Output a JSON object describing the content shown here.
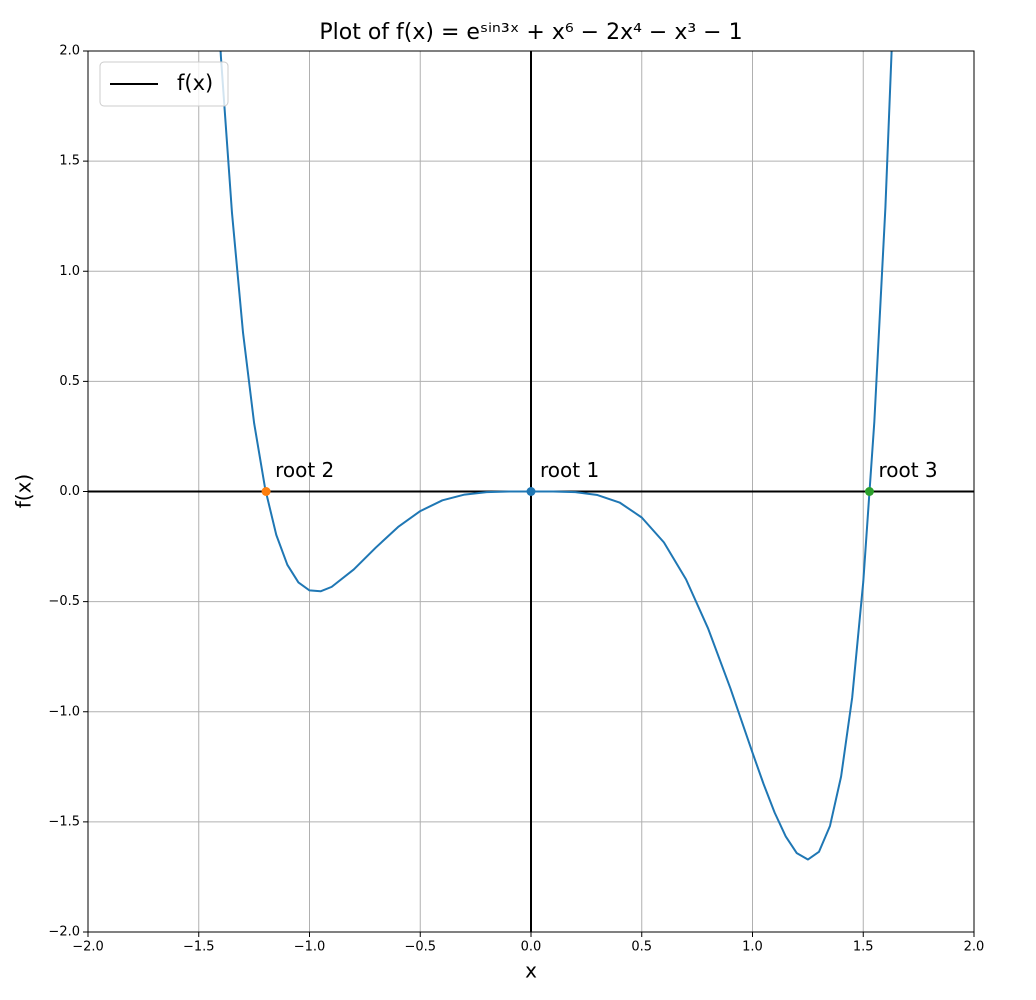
{
  "chart_data": {
    "type": "line",
    "title": "Plot of f(x) = eˢⁱⁿ³ˣ + x⁶ − 2x⁴ − x³ − 1",
    "x_label": "x",
    "y_label": "f(x)",
    "xlim": [
      -2.0,
      2.0
    ],
    "ylim": [
      -2.0,
      2.0
    ],
    "xticks": [
      {
        "value": -2.0,
        "label": "−2.0"
      },
      {
        "value": -1.5,
        "label": "−1.5"
      },
      {
        "value": -1.0,
        "label": "−1.0"
      },
      {
        "value": -0.5,
        "label": "−0.5"
      },
      {
        "value": 0.0,
        "label": "0.0"
      },
      {
        "value": 0.5,
        "label": "0.5"
      },
      {
        "value": 1.0,
        "label": "1.0"
      },
      {
        "value": 1.5,
        "label": "1.5"
      },
      {
        "value": 2.0,
        "label": "2.0"
      }
    ],
    "yticks": [
      {
        "value": -2.0,
        "label": "−2.0"
      },
      {
        "value": -1.5,
        "label": "−1.5"
      },
      {
        "value": -1.0,
        "label": "−1.0"
      },
      {
        "value": -0.5,
        "label": "−0.5"
      },
      {
        "value": 0.0,
        "label": "0.0"
      },
      {
        "value": 0.5,
        "label": "0.5"
      },
      {
        "value": 1.0,
        "label": "1.0"
      },
      {
        "value": 1.5,
        "label": "1.5"
      },
      {
        "value": 2.0,
        "label": "2.0"
      }
    ],
    "grid": true,
    "hlines": [
      0
    ],
    "vlines": [
      0
    ],
    "legend": "upper left",
    "legend_handle_color": "#000000",
    "x": [
      -1.45,
      -1.4,
      -1.35,
      -1.3,
      -1.25,
      -1.2,
      -1.15,
      -1.1,
      -1.05,
      -1.0,
      -0.95,
      -0.9,
      -0.8,
      -0.7,
      -0.6,
      -0.5,
      -0.4,
      -0.3,
      -0.2,
      -0.1,
      0.0,
      0.1,
      0.2,
      0.3,
      0.4,
      0.5,
      0.6,
      0.7,
      0.8,
      0.9,
      1.0,
      1.05,
      1.1,
      1.15,
      1.2,
      1.25,
      1.3,
      1.35,
      1.4,
      1.45,
      1.5,
      1.55,
      1.6,
      1.65
    ],
    "series": [
      {
        "name": "f(x)",
        "color": "#1f77b4",
        "values": [
          2.878,
          1.974,
          1.266,
          0.72,
          0.31,
          0.012,
          -0.197,
          -0.333,
          -0.413,
          -0.449,
          -0.453,
          -0.433,
          -0.354,
          -0.254,
          -0.161,
          -0.089,
          -0.04,
          -0.014,
          -0.003,
          -0.0002,
          0.0,
          -0.0002,
          -0.003,
          -0.016,
          -0.05,
          -0.118,
          -0.231,
          -0.399,
          -0.623,
          -0.893,
          -1.186,
          -1.328,
          -1.458,
          -1.566,
          -1.642,
          -1.671,
          -1.636,
          -1.518,
          -1.294,
          -0.936,
          -0.411,
          0.316,
          1.289,
          2.556
        ]
      }
    ],
    "points": [
      {
        "label": "root 1",
        "x": 0.0,
        "y": 0.0,
        "color": "#1f77b4"
      },
      {
        "label": "root 2",
        "x": -1.196,
        "y": 0.0,
        "color": "#ff7f0e"
      },
      {
        "label": "root 3",
        "x": 1.528,
        "y": 0.0,
        "color": "#2ca02c"
      }
    ]
  }
}
